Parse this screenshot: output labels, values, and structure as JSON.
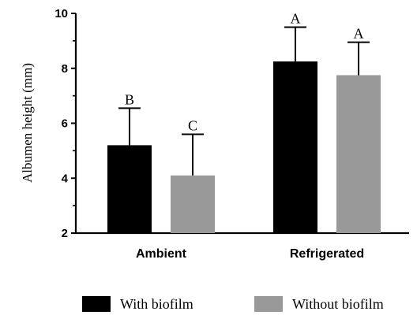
{
  "chart_data": {
    "type": "bar",
    "categories": [
      "Ambient",
      "Refrigerated"
    ],
    "series": [
      {
        "name": "With biofilm",
        "color": "#000000",
        "values": [
          5.2,
          8.25
        ],
        "errors": [
          1.35,
          1.25
        ],
        "annotations": [
          "B",
          "A"
        ]
      },
      {
        "name": "Without biofilm",
        "color": "#999999",
        "values": [
          4.1,
          7.75
        ],
        "errors": [
          1.5,
          1.2
        ],
        "annotations": [
          "C",
          "A"
        ]
      }
    ],
    "title": "",
    "xlabel": "",
    "ylabel": "Albumen height (mm)",
    "ylim": [
      2,
      10
    ],
    "yticks": [
      2,
      4,
      6,
      8,
      10
    ],
    "grid": false,
    "legend_position": "bottom"
  }
}
